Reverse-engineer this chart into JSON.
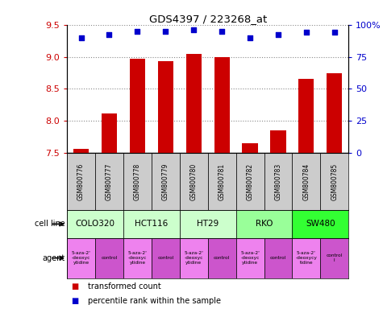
{
  "title": "GDS4397 / 223268_at",
  "samples": [
    "GSM800776",
    "GSM800777",
    "GSM800778",
    "GSM800779",
    "GSM800780",
    "GSM800781",
    "GSM800782",
    "GSM800783",
    "GSM800784",
    "GSM800785"
  ],
  "transformed_counts": [
    7.56,
    8.12,
    8.97,
    8.93,
    9.04,
    8.99,
    7.65,
    7.85,
    8.66,
    8.74
  ],
  "percentile_ranks": [
    90,
    92,
    95,
    95,
    96,
    95,
    90,
    92,
    94,
    94
  ],
  "ylim_left": [
    7.5,
    9.5
  ],
  "ylim_right": [
    0,
    100
  ],
  "yticks_left": [
    7.5,
    8.0,
    8.5,
    9.0,
    9.5
  ],
  "yticks_right": [
    0,
    25,
    50,
    75,
    100
  ],
  "ytick_labels_right": [
    "0",
    "25",
    "50",
    "75",
    "100%"
  ],
  "bar_color": "#cc0000",
  "dot_color": "#0000cc",
  "cell_lines": [
    {
      "name": "COLO320",
      "start": 0,
      "end": 2,
      "color": "#ccffcc"
    },
    {
      "name": "HCT116",
      "start": 2,
      "end": 4,
      "color": "#ccffcc"
    },
    {
      "name": "HT29",
      "start": 4,
      "end": 6,
      "color": "#ccffcc"
    },
    {
      "name": "RKO",
      "start": 6,
      "end": 8,
      "color": "#99ff99"
    },
    {
      "name": "SW480",
      "start": 8,
      "end": 10,
      "color": "#33ff33"
    }
  ],
  "agents": [
    {
      "name": "5-aza-2'\n-deoxyc\nytidine",
      "type": "drug",
      "col": 0
    },
    {
      "name": "control",
      "type": "control",
      "col": 1
    },
    {
      "name": "5-aza-2'\n-deoxyc\nytidine",
      "type": "drug",
      "col": 2
    },
    {
      "name": "control",
      "type": "control",
      "col": 3
    },
    {
      "name": "5-aza-2'\n-deoxyc\nytidine",
      "type": "drug",
      "col": 4
    },
    {
      "name": "control",
      "type": "control",
      "col": 5
    },
    {
      "name": "5-aza-2'\n-deoxyc\nytidine",
      "type": "drug",
      "col": 6
    },
    {
      "name": "control",
      "type": "control",
      "col": 7
    },
    {
      "name": "5-aza-2'\n-deoxycy\ntidine",
      "type": "drug",
      "col": 8
    },
    {
      "name": "control\nl",
      "type": "control",
      "col": 9
    }
  ],
  "drug_color": "#ee82ee",
  "control_color": "#cc55cc",
  "gsm_bg_color": "#cccccc",
  "label_color_left": "#cc0000",
  "label_color_right": "#0000cc",
  "grid_color": "#888888",
  "legend_red_label": "transformed count",
  "legend_blue_label": "percentile rank within the sample",
  "cell_line_label": "cell line",
  "agent_label": "agent"
}
